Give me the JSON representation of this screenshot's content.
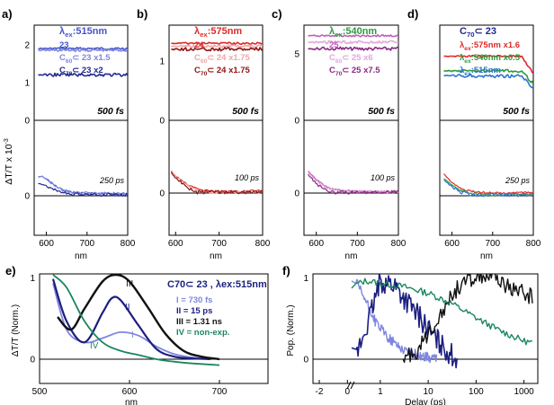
{
  "figure": {
    "y_axis_label": "ΔT/T x 10",
    "y_axis_exponent": "-3",
    "x_unit": "nm"
  },
  "colors": {
    "blue_light": "#7f86e0",
    "blue_mid": "#4655c8",
    "blue_dark": "#222a8c",
    "red_light": "#f2a6a6",
    "red_mid": "#dd2b2b",
    "red_dark": "#8f1414",
    "mag_light": "#e3a6dd",
    "mag_mid": "#c060b8",
    "mag_dark": "#8a2a82",
    "green": "#2c9a3c",
    "blue_d": "#2f74d0",
    "black": "#111111",
    "teal": "#1a8660",
    "navy": "#1c1f80"
  },
  "chart_data": [
    {
      "panel": "a)",
      "type": "line",
      "xlabel": "nm",
      "x_ticks": [
        "600",
        "700",
        "800"
      ],
      "y_ticks": [
        "0",
        "1",
        "2"
      ],
      "zero_labels": [
        "0",
        "0"
      ],
      "time_labels": [
        "500 fs",
        "250 ps"
      ],
      "legend": [
        {
          "pre": "λ",
          "sub": "ex",
          "post": ":515nm",
          "color": "#4655c8"
        },
        {
          "pre": "23",
          "color": "#4655c8"
        },
        {
          "pre": "C",
          "sub": "60",
          "post": "⊂ 23 x1.5",
          "color": "#7f86e0"
        },
        {
          "pre": "C",
          "sub": "70",
          "post": "⊂ 23 x2",
          "color": "#222a8c"
        }
      ],
      "series": [
        {
          "legend": "23",
          "color": "#4655c8",
          "x": [
            580,
            590,
            600,
            620,
            640,
            660,
            700,
            750,
            800
          ],
          "y": [
            2.05,
            2.1,
            1.8,
            1.1,
            0.55,
            0.3,
            0.18,
            0.15,
            0.12
          ]
        },
        {
          "legend": "C60⊂23 x1.5",
          "color": "#7f86e0",
          "x": [
            580,
            590,
            600,
            620,
            640,
            660,
            700,
            750,
            800
          ],
          "y": [
            2.0,
            2.05,
            1.75,
            1.05,
            0.55,
            0.3,
            0.2,
            0.16,
            0.12
          ]
        },
        {
          "legend": "C70⊂23 x2",
          "color": "#222a8c",
          "x": [
            580,
            590,
            600,
            620,
            640,
            660,
            700,
            750,
            800
          ],
          "y": [
            1.3,
            1.2,
            1.0,
            0.6,
            0.25,
            0.08,
            0.02,
            0.0,
            -0.02
          ]
        }
      ]
    },
    {
      "panel": "b)",
      "type": "line",
      "xlabel": "nm",
      "x_ticks": [
        "600",
        "700",
        "800"
      ],
      "y_ticks": [
        "0",
        "1"
      ],
      "zero_labels": [
        "0",
        "0"
      ],
      "time_labels": [
        "500 fs",
        "100 ps"
      ],
      "legend": [
        {
          "pre": "λ",
          "sub": "ex",
          "post": ":575nm",
          "color": "#dd2b2b"
        },
        {
          "pre": "24",
          "color": "#dd2b2b"
        },
        {
          "pre": "C",
          "sub": "60",
          "post": "⊂ 24 x1.75",
          "color": "#f2a6a6"
        },
        {
          "pre": "C",
          "sub": "70",
          "post": "⊂ 24 x1.75",
          "color": "#8f1414"
        }
      ],
      "series": [
        {
          "legend": "24",
          "color": "#dd2b2b",
          "x": [
            590,
            600,
            620,
            640,
            660,
            700,
            750,
            800
          ],
          "y": [
            1.3,
            1.0,
            0.6,
            0.3,
            0.12,
            0.04,
            0.05,
            0.12
          ]
        },
        {
          "legend": "C60⊂24 x1.75",
          "color": "#f2a6a6",
          "x": [
            590,
            600,
            620,
            640,
            660,
            700,
            750,
            800
          ],
          "y": [
            1.25,
            1.0,
            0.55,
            0.25,
            0.05,
            -0.08,
            -0.1,
            -0.05
          ]
        },
        {
          "legend": "C70⊂24 x1.75",
          "color": "#8f1414",
          "x": [
            590,
            600,
            620,
            640,
            660,
            700,
            750,
            800
          ],
          "y": [
            1.2,
            0.9,
            0.45,
            0.1,
            -0.1,
            -0.22,
            -0.25,
            -0.1
          ]
        }
      ]
    },
    {
      "panel": "c)",
      "type": "line",
      "xlabel": "nm",
      "x_ticks": [
        "600",
        "700",
        "800"
      ],
      "y_ticks": [
        "0",
        "5"
      ],
      "zero_labels": [
        "0",
        "0"
      ],
      "time_labels": [
        "500 fs",
        "100 ps"
      ],
      "legend": [
        {
          "pre": "λ",
          "sub": "ex",
          "post": ":540nm",
          "color": "#2c9a3c"
        },
        {
          "pre": "25",
          "color": "#c060b8"
        },
        {
          "pre": "C",
          "sub": "60",
          "post": "⊂ 25 x6",
          "color": "#e3a6dd"
        },
        {
          "pre": "C",
          "sub": "70",
          "post": "⊂ 25 x7.5",
          "color": "#8a2a82"
        }
      ],
      "series": [
        {
          "legend": "25",
          "color": "#c060b8",
          "x": [
            580,
            600,
            620,
            640,
            660,
            700,
            750,
            800
          ],
          "y": [
            6.5,
            4.0,
            2.0,
            1.0,
            0.5,
            0.3,
            0.2,
            0.2
          ]
        },
        {
          "legend": "C60⊂25 x6",
          "color": "#e3a6dd",
          "x": [
            580,
            600,
            620,
            640,
            660,
            700,
            750,
            800
          ],
          "y": [
            6.0,
            3.5,
            1.6,
            0.7,
            0.35,
            0.15,
            0.12,
            0.1
          ]
        },
        {
          "legend": "C70⊂25 x7.5",
          "color": "#8a2a82",
          "x": [
            580,
            600,
            620,
            640,
            660,
            700,
            750,
            800
          ],
          "y": [
            5.5,
            2.6,
            0.9,
            0.1,
            -0.3,
            -0.5,
            -0.5,
            -0.4
          ]
        }
      ]
    },
    {
      "panel": "d)",
      "type": "line",
      "xlabel": "nm",
      "x_ticks": [
        "600",
        "700",
        "800"
      ],
      "y_ticks": [],
      "zero_labels": [],
      "time_labels": [
        "500 fs",
        "250 ps"
      ],
      "legend": [
        {
          "pre": "C",
          "sub": "70",
          "post": "⊂ 23",
          "color": "#222a8c"
        },
        {
          "pre": "λ",
          "sub": "ex",
          "post": ":575nm x1.6",
          "color": "#dd2b2b"
        },
        {
          "pre": "λ",
          "sub": "ex",
          "post": ":540nm x0.5",
          "color": "#2c9a3c"
        },
        {
          "pre": "λ",
          "sub": "ex",
          "post": ":515nm",
          "color": "#2f74d0"
        }
      ],
      "series": [
        {
          "legend": "λex:575nm x1.6",
          "color": "#dd2b2b",
          "x": [
            580,
            600,
            620,
            640,
            660,
            700,
            750,
            800
          ],
          "y": [
            1.3,
            0.75,
            0.4,
            0.25,
            0.18,
            0.12,
            0.12,
            0.15
          ]
        },
        {
          "legend": "λex:540nm x0.5",
          "color": "#2c9a3c",
          "x": [
            580,
            600,
            620,
            640,
            660,
            700,
            750,
            800
          ],
          "y": [
            1.0,
            0.6,
            0.3,
            0.12,
            0.05,
            0.0,
            0.0,
            0.05
          ]
        },
        {
          "legend": "λex:515nm",
          "color": "#2f74d0",
          "x": [
            580,
            600,
            620,
            640,
            660,
            700,
            750,
            800
          ],
          "y": [
            0.9,
            0.5,
            0.2,
            0.05,
            -0.03,
            -0.08,
            -0.08,
            -0.05
          ]
        }
      ]
    },
    {
      "panel": "e)",
      "type": "line",
      "title": "C70⊂ 23 , λex:515nm",
      "xlabel": "nm",
      "ylabel": "ΔT/T (Norm.)",
      "x_ticks": [
        "500",
        "600",
        "700"
      ],
      "y_ticks": [
        "0",
        "1"
      ],
      "component_labels": [
        "III",
        "II",
        "I",
        "IV"
      ],
      "legend": [
        {
          "pre": "I = 730 fs",
          "color": "#7f86e0"
        },
        {
          "pre": "II = 15 ps",
          "color": "#1c1f80"
        },
        {
          "pre": "III = 1.31 ns",
          "color": "#111111"
        },
        {
          "pre": "IV = non-exp.",
          "color": "#1a8660"
        }
      ],
      "series": [
        {
          "name": "I",
          "color": "#7f86e0",
          "x": [
            515,
            530,
            550,
            570,
            590,
            610,
            630,
            650,
            670,
            690
          ],
          "y": [
            0.9,
            0.35,
            0.2,
            0.25,
            0.32,
            0.28,
            0.15,
            0.06,
            0.02,
            0.0
          ]
        },
        {
          "name": "II",
          "color": "#1c1f80",
          "x": [
            515,
            530,
            550,
            570,
            580,
            590,
            610,
            630,
            650,
            670,
            690
          ],
          "y": [
            0.95,
            0.45,
            0.2,
            0.55,
            0.72,
            0.7,
            0.4,
            0.12,
            0.03,
            0.01,
            0.0
          ]
        },
        {
          "name": "III",
          "color": "#111111",
          "x": [
            520,
            535,
            550,
            570,
            585,
            600,
            620,
            640,
            660,
            680,
            700
          ],
          "y": [
            0.5,
            0.35,
            0.6,
            0.92,
            1.0,
            0.92,
            0.62,
            0.3,
            0.1,
            0.03,
            0.0
          ]
        },
        {
          "name": "IV",
          "color": "#1a8660",
          "x": [
            515,
            530,
            550,
            570,
            590,
            610,
            630,
            650,
            670,
            700
          ],
          "y": [
            1.0,
            0.85,
            0.45,
            0.2,
            0.1,
            0.05,
            0.0,
            -0.03,
            -0.05,
            -0.07
          ]
        }
      ]
    },
    {
      "panel": "f)",
      "type": "line",
      "xlabel": "Delay (ps)",
      "ylabel": "Pop. (Norm.)",
      "x_ticks": [
        "-2",
        "0",
        "1",
        "10",
        "100",
        "1000"
      ],
      "y_ticks": [
        "0",
        "1"
      ],
      "x_scale": "linear below 0.3 ps, log above",
      "series": [
        {
          "name": "I",
          "color": "#7f86e0",
          "x": [
            0.3,
            0.5,
            0.8,
            1.5,
            3,
            6,
            15
          ],
          "y": [
            0.95,
            0.7,
            0.45,
            0.25,
            0.12,
            0.05,
            0.0
          ]
        },
        {
          "name": "II",
          "color": "#1c1f80",
          "x": [
            0.3,
            0.6,
            1,
            2,
            3,
            5,
            8,
            12,
            20,
            40
          ],
          "y": [
            0.0,
            0.5,
            0.95,
            0.9,
            0.75,
            0.6,
            0.45,
            0.3,
            0.15,
            0.0
          ]
        },
        {
          "name": "III",
          "color": "#111111",
          "x": [
            3,
            6,
            10,
            20,
            40,
            80,
            150,
            300,
            600,
            1500
          ],
          "y": [
            0.0,
            0.1,
            0.3,
            0.6,
            0.85,
            0.98,
            1.0,
            0.95,
            0.85,
            0.75
          ]
        },
        {
          "name": "IV",
          "color": "#1a8660",
          "x": [
            0.3,
            0.5,
            1,
            3,
            10,
            30,
            100,
            300,
            1000,
            1500
          ],
          "y": [
            0.9,
            0.95,
            0.92,
            0.88,
            0.8,
            0.68,
            0.5,
            0.35,
            0.22,
            0.2
          ]
        }
      ]
    }
  ]
}
